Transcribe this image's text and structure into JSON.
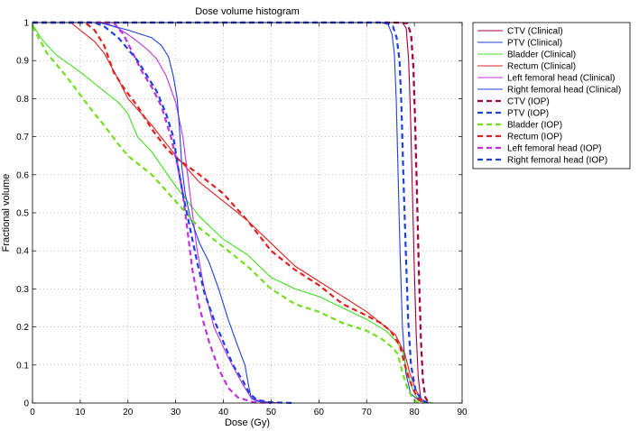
{
  "chart_data": {
    "type": "line",
    "title": "Dose volume histogram",
    "xlabel": "Dose (Gy)",
    "ylabel": "Fractional volume",
    "xlim": [
      0,
      90
    ],
    "ylim": [
      0,
      1
    ],
    "grid": true,
    "legend_position": "outside top-right",
    "x_ticks": [
      "0",
      "10",
      "20",
      "30",
      "40",
      "50",
      "60",
      "70",
      "80",
      "90"
    ],
    "y_ticks": [
      "0",
      "0.1",
      "0.2",
      "0.3",
      "0.4",
      "0.5",
      "0.6",
      "0.7",
      "0.8",
      "0.9",
      "1"
    ],
    "series": [
      {
        "name": "CTV (Clinical)",
        "color": "#a00040",
        "style": "solid",
        "points": [
          [
            0,
            1
          ],
          [
            75,
            1
          ],
          [
            77.5,
            1
          ],
          [
            78.3,
            0.985
          ],
          [
            78.8,
            0.9
          ],
          [
            79.2,
            0.75
          ],
          [
            79.6,
            0.55
          ],
          [
            80,
            0.35
          ],
          [
            80.4,
            0.18
          ],
          [
            80.8,
            0.07
          ],
          [
            81.3,
            0.015
          ],
          [
            82,
            0
          ]
        ]
      },
      {
        "name": "PTV (Clinical)",
        "color": "#2040e0",
        "style": "solid",
        "points": [
          [
            0,
            1
          ],
          [
            73,
            1
          ],
          [
            74.5,
            0.995
          ],
          [
            75.3,
            0.97
          ],
          [
            75.8,
            0.92
          ],
          [
            76.2,
            0.8
          ],
          [
            76.6,
            0.6
          ],
          [
            77,
            0.4
          ],
          [
            77.5,
            0.2
          ],
          [
            78.2,
            0.08
          ],
          [
            79.2,
            0.025
          ],
          [
            81,
            0.006
          ],
          [
            83,
            0
          ]
        ]
      },
      {
        "name": "Bladder (Clinical)",
        "color": "#40e020",
        "style": "solid",
        "points": [
          [
            0,
            0.995
          ],
          [
            2,
            0.955
          ],
          [
            5,
            0.915
          ],
          [
            10,
            0.87
          ],
          [
            15,
            0.82
          ],
          [
            18,
            0.79
          ],
          [
            20,
            0.76
          ],
          [
            20.5,
            0.745
          ],
          [
            22,
            0.7
          ],
          [
            25,
            0.66
          ],
          [
            30,
            0.57
          ],
          [
            35,
            0.49
          ],
          [
            40,
            0.43
          ],
          [
            45,
            0.39
          ],
          [
            50,
            0.33
          ],
          [
            55,
            0.3
          ],
          [
            60,
            0.28
          ],
          [
            65,
            0.25
          ],
          [
            70,
            0.22
          ],
          [
            74,
            0.19
          ],
          [
            76,
            0.165
          ],
          [
            77.5,
            0.14
          ],
          [
            78.5,
            0.08
          ],
          [
            79.5,
            0.04
          ],
          [
            80.5,
            0.015
          ],
          [
            82,
            0.003
          ],
          [
            84,
            0
          ]
        ]
      },
      {
        "name": "Rectum (Clinical)",
        "color": "#e02020",
        "style": "solid",
        "points": [
          [
            0,
            1
          ],
          [
            8,
            1
          ],
          [
            10,
            0.98
          ],
          [
            13,
            0.95
          ],
          [
            15,
            0.92
          ],
          [
            18,
            0.85
          ],
          [
            20,
            0.8
          ],
          [
            25,
            0.73
          ],
          [
            30,
            0.65
          ],
          [
            35,
            0.58
          ],
          [
            40,
            0.53
          ],
          [
            45,
            0.48
          ],
          [
            50,
            0.42
          ],
          [
            55,
            0.36
          ],
          [
            60,
            0.32
          ],
          [
            65,
            0.28
          ],
          [
            70,
            0.24
          ],
          [
            73,
            0.21
          ],
          [
            76,
            0.18
          ],
          [
            78,
            0.13
          ],
          [
            79,
            0.08
          ],
          [
            80,
            0.045
          ],
          [
            81,
            0.015
          ],
          [
            82,
            0.003
          ],
          [
            83,
            0
          ]
        ]
      },
      {
        "name": "Left femoral head (Clinical)",
        "color": "#c030e0",
        "style": "solid",
        "points": [
          [
            0,
            1
          ],
          [
            15,
            1
          ],
          [
            18,
            0.985
          ],
          [
            21,
            0.96
          ],
          [
            24,
            0.93
          ],
          [
            26,
            0.905
          ],
          [
            28,
            0.86
          ],
          [
            30,
            0.79
          ],
          [
            31.5,
            0.7
          ],
          [
            32.5,
            0.6
          ],
          [
            33.5,
            0.5
          ],
          [
            34.5,
            0.4
          ],
          [
            36,
            0.3
          ],
          [
            38,
            0.2
          ],
          [
            41,
            0.12
          ],
          [
            44,
            0.05
          ],
          [
            46,
            0.01
          ],
          [
            49,
            0.003
          ],
          [
            52,
            0
          ]
        ]
      },
      {
        "name": "Right femoral head (Clinical)",
        "color": "#2040e0",
        "style": "solid",
        "points": [
          [
            0,
            1
          ],
          [
            14,
            1
          ],
          [
            20,
            0.98
          ],
          [
            25,
            0.96
          ],
          [
            27,
            0.94
          ],
          [
            28.5,
            0.91
          ],
          [
            29.5,
            0.86
          ],
          [
            30.3,
            0.8
          ],
          [
            30.8,
            0.72
          ],
          [
            31.3,
            0.62
          ],
          [
            32,
            0.55
          ],
          [
            33,
            0.49
          ],
          [
            35,
            0.42
          ],
          [
            37,
            0.37
          ],
          [
            39,
            0.3
          ],
          [
            41,
            0.22
          ],
          [
            43,
            0.15
          ],
          [
            44.5,
            0.1
          ],
          [
            45.2,
            0.05
          ],
          [
            45.8,
            0.015
          ],
          [
            47,
            0.005
          ],
          [
            50,
            0
          ]
        ]
      },
      {
        "name": "CTV (IOP)",
        "color": "#a00040",
        "style": "dashed",
        "points": [
          [
            0,
            1
          ],
          [
            76,
            1
          ],
          [
            78.5,
            0.998
          ],
          [
            79.3,
            0.97
          ],
          [
            79.8,
            0.88
          ],
          [
            80.2,
            0.72
          ],
          [
            80.6,
            0.52
          ],
          [
            81,
            0.32
          ],
          [
            81.4,
            0.16
          ],
          [
            81.8,
            0.06
          ],
          [
            82.3,
            0.015
          ],
          [
            83,
            0
          ]
        ]
      },
      {
        "name": "PTV (IOP)",
        "color": "#2040e0",
        "style": "dashed",
        "points": [
          [
            0,
            1
          ],
          [
            74,
            1
          ],
          [
            75.5,
            0.99
          ],
          [
            76.3,
            0.96
          ],
          [
            76.9,
            0.9
          ],
          [
            77.3,
            0.78
          ],
          [
            77.7,
            0.6
          ],
          [
            78.2,
            0.4
          ],
          [
            78.7,
            0.22
          ],
          [
            79.3,
            0.1
          ],
          [
            80.2,
            0.035
          ],
          [
            81.5,
            0.008
          ],
          [
            83,
            0
          ]
        ]
      },
      {
        "name": "Bladder (IOP)",
        "color": "#70e020",
        "style": "dashed",
        "points": [
          [
            0,
            0.99
          ],
          [
            3,
            0.92
          ],
          [
            7,
            0.86
          ],
          [
            10,
            0.81
          ],
          [
            13,
            0.76
          ],
          [
            15,
            0.73
          ],
          [
            18,
            0.68
          ],
          [
            20,
            0.65
          ],
          [
            25,
            0.6
          ],
          [
            30,
            0.53
          ],
          [
            35,
            0.46
          ],
          [
            40,
            0.41
          ],
          [
            45,
            0.36
          ],
          [
            50,
            0.3
          ],
          [
            55,
            0.26
          ],
          [
            60,
            0.24
          ],
          [
            65,
            0.21
          ],
          [
            70,
            0.19
          ],
          [
            73,
            0.17
          ],
          [
            75,
            0.15
          ],
          [
            76.5,
            0.13
          ],
          [
            77.5,
            0.08
          ],
          [
            78.5,
            0.04
          ],
          [
            79.5,
            0.015
          ],
          [
            80.5,
            0.003
          ],
          [
            82,
            0
          ]
        ]
      },
      {
        "name": "Rectum (IOP)",
        "color": "#e02020",
        "style": "dashed",
        "points": [
          [
            0,
            1
          ],
          [
            11,
            1
          ],
          [
            13,
            0.98
          ],
          [
            15,
            0.94
          ],
          [
            17,
            0.87
          ],
          [
            19,
            0.83
          ],
          [
            22,
            0.78
          ],
          [
            25,
            0.72
          ],
          [
            28,
            0.67
          ],
          [
            30,
            0.645
          ],
          [
            35,
            0.6
          ],
          [
            40,
            0.55
          ],
          [
            45,
            0.48
          ],
          [
            50,
            0.4
          ],
          [
            55,
            0.35
          ],
          [
            60,
            0.31
          ],
          [
            65,
            0.26
          ],
          [
            70,
            0.23
          ],
          [
            73,
            0.21
          ],
          [
            75,
            0.19
          ],
          [
            77,
            0.15
          ],
          [
            78,
            0.1
          ],
          [
            79,
            0.06
          ],
          [
            80,
            0.03
          ],
          [
            81,
            0.008
          ],
          [
            82,
            0
          ]
        ]
      },
      {
        "name": "Left femoral head (IOP)",
        "color": "#c030e0",
        "style": "dashed",
        "points": [
          [
            0,
            1
          ],
          [
            17,
            1
          ],
          [
            19,
            0.97
          ],
          [
            21,
            0.92
          ],
          [
            23,
            0.87
          ],
          [
            25,
            0.83
          ],
          [
            27,
            0.78
          ],
          [
            29,
            0.7
          ],
          [
            30.5,
            0.62
          ],
          [
            31.5,
            0.55
          ],
          [
            32.5,
            0.45
          ],
          [
            33.5,
            0.35
          ],
          [
            35,
            0.25
          ],
          [
            37,
            0.16
          ],
          [
            39,
            0.09
          ],
          [
            41,
            0.04
          ],
          [
            43,
            0.015
          ],
          [
            46,
            0.003
          ],
          [
            50,
            0
          ]
        ]
      },
      {
        "name": "Right femoral head (IOP)",
        "color": "#2040e0",
        "style": "dashed",
        "points": [
          [
            0,
            1
          ],
          [
            13,
            1
          ],
          [
            15,
            0.99
          ],
          [
            18,
            0.96
          ],
          [
            20,
            0.93
          ],
          [
            22,
            0.9
          ],
          [
            24,
            0.86
          ],
          [
            26,
            0.82
          ],
          [
            28,
            0.76
          ],
          [
            29.5,
            0.7
          ],
          [
            30.5,
            0.62
          ],
          [
            31.5,
            0.55
          ],
          [
            33,
            0.46
          ],
          [
            34.5,
            0.37
          ],
          [
            36,
            0.29
          ],
          [
            38,
            0.22
          ],
          [
            40,
            0.16
          ],
          [
            42,
            0.1
          ],
          [
            44,
            0.06
          ],
          [
            45.5,
            0.025
          ],
          [
            47,
            0.008
          ],
          [
            50,
            0.002
          ],
          [
            55,
            0
          ]
        ]
      }
    ]
  }
}
